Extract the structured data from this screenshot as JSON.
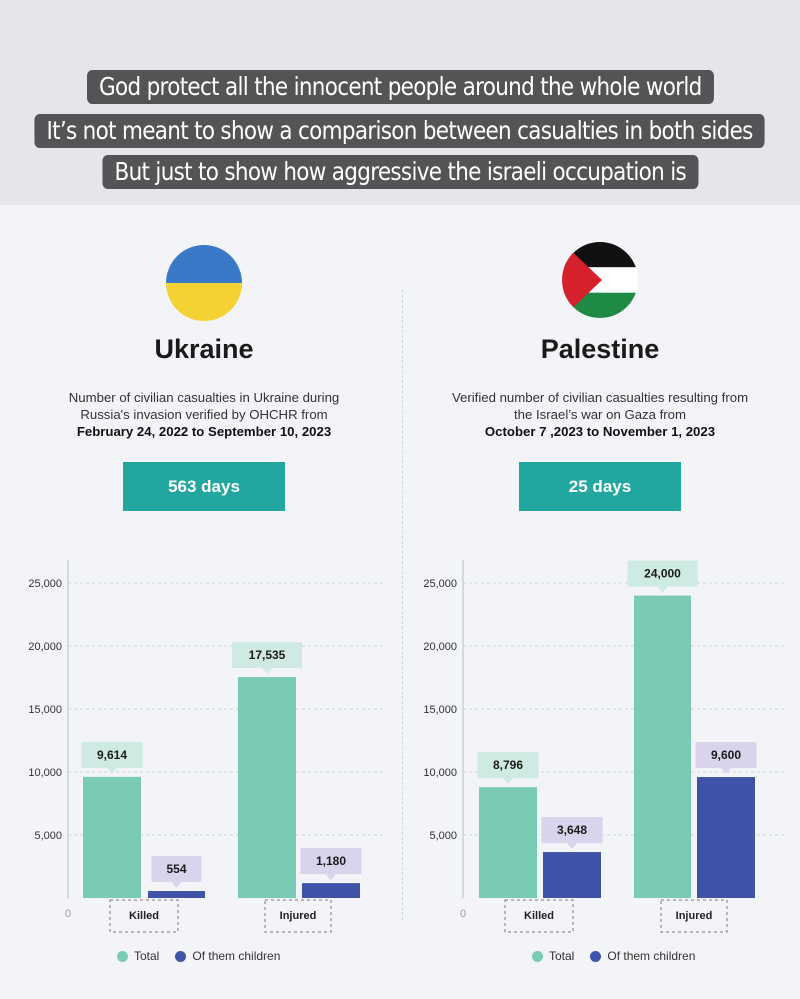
{
  "caption": {
    "lines": [
      "God protect all the innocent people around the whole world",
      "It’s not meant to show a comparison between casualties in both sides",
      "But just to show how aggressive the israeli occupation is"
    ]
  },
  "colors": {
    "total": "#79cbb3",
    "children": "#3f54a8",
    "days_box": "#21a7a0",
    "label_total": "#cfeae2",
    "label_children": "#d9d3ec"
  },
  "panels": [
    {
      "country": "Ukraine",
      "flag_icon": "ukraine-flag-icon",
      "desc_line1": "Number of civilian casualties in Ukraine during",
      "desc_line2": "Russia's invasion verified by OHCHR from",
      "desc_dates": "February 24, 2022 to September 10, 2023",
      "days": "563 days"
    },
    {
      "country": "Palestine",
      "flag_icon": "palestine-flag-icon",
      "desc_line1": "Verified number of civilian casualties resulting from",
      "desc_line2": "the Israel’s war on Gaza from",
      "desc_dates": "October 7 ,2023 to November 1, 2023",
      "days": "25 days"
    }
  ],
  "legend": {
    "total": "Total",
    "children": "Of them children"
  },
  "chart_data": [
    {
      "type": "bar",
      "title": "Ukraine",
      "categories": [
        "Killed",
        "Injured"
      ],
      "series": [
        {
          "name": "Total",
          "values": [
            9614,
            17535
          ]
        },
        {
          "name": "Of them children",
          "values": [
            554,
            1180
          ]
        }
      ],
      "value_labels": [
        [
          "9,614",
          "17,535"
        ],
        [
          "554",
          "1,180"
        ]
      ],
      "yticks": [
        "0",
        "5,000",
        "10,000",
        "15,000",
        "20,000",
        "25,000"
      ],
      "ylim": [
        0,
        25000
      ],
      "grid": true,
      "legend": "bottom"
    },
    {
      "type": "bar",
      "title": "Palestine",
      "categories": [
        "Killed",
        "Injured"
      ],
      "series": [
        {
          "name": "Total",
          "values": [
            8796,
            24000
          ]
        },
        {
          "name": "Of them children",
          "values": [
            3648,
            9600
          ]
        }
      ],
      "value_labels": [
        [
          "8,796",
          "24,000"
        ],
        [
          "3,648",
          "9,600"
        ]
      ],
      "yticks": [
        "0",
        "5,000",
        "10,000",
        "15,000",
        "20,000",
        "25,000"
      ],
      "ylim": [
        0,
        25000
      ],
      "grid": true,
      "legend": "bottom"
    }
  ]
}
